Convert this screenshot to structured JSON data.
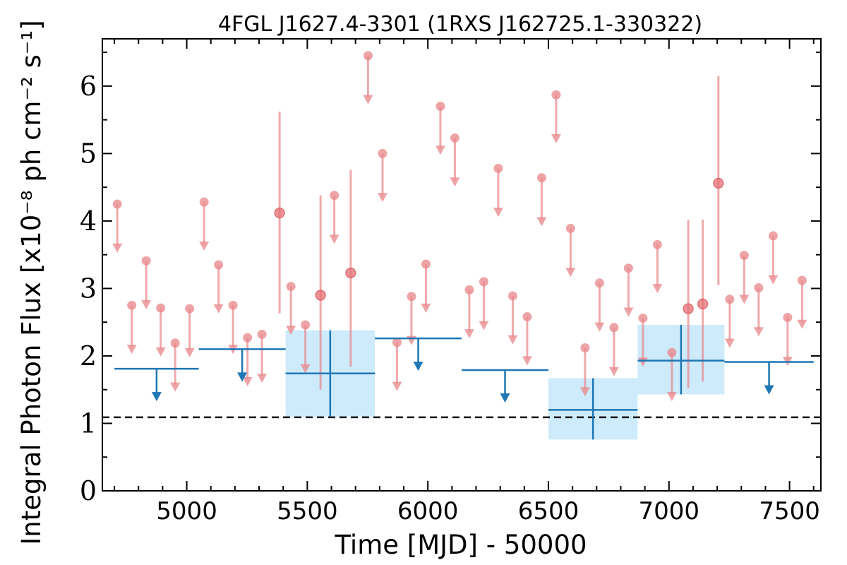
{
  "chart_data": {
    "type": "scatter",
    "title": "4FGL J1627.4-3301 (1RXS J162725.1-330322)",
    "xlabel": "Time [MJD] - 50000",
    "ylabel": "Integral Photon Flux [x10⁻⁸ ph cm⁻² s⁻¹]",
    "xlim": [
      4650,
      7630
    ],
    "ylim": [
      0,
      6.7
    ],
    "x_ticks": [
      5000,
      5500,
      6000,
      6500,
      7000,
      7500
    ],
    "y_ticks": [
      0,
      1,
      2,
      3,
      4,
      5,
      6
    ],
    "grid": false,
    "reference_line": {
      "y": 1.09,
      "style": "dashed",
      "color": "#000000"
    },
    "colors": {
      "short_bins": "#e8868a",
      "long_bins": "#1f77b4",
      "long_band": "#cdebfb"
    },
    "series": [
      {
        "kind": "short_upper_limits",
        "points": [
          [
            4712,
            4.25
          ],
          [
            4772,
            2.75
          ],
          [
            4832,
            3.41
          ],
          [
            4892,
            2.71
          ],
          [
            4952,
            2.19
          ],
          [
            5012,
            2.7
          ],
          [
            5072,
            4.28
          ],
          [
            5132,
            3.35
          ],
          [
            5192,
            2.75
          ],
          [
            5252,
            2.27
          ],
          [
            5312,
            2.32
          ],
          [
            5432,
            3.03
          ],
          [
            5492,
            2.46
          ],
          [
            5612,
            4.38
          ],
          [
            5752,
            6.45
          ],
          [
            5812,
            5.0
          ],
          [
            5872,
            2.2
          ],
          [
            5932,
            2.88
          ],
          [
            5992,
            3.36
          ],
          [
            6052,
            5.7
          ],
          [
            6112,
            5.23
          ],
          [
            6172,
            2.98
          ],
          [
            6232,
            3.1
          ],
          [
            6292,
            4.78
          ],
          [
            6352,
            2.89
          ],
          [
            6412,
            2.58
          ],
          [
            6472,
            4.64
          ],
          [
            6532,
            5.87
          ],
          [
            6592,
            3.89
          ],
          [
            6652,
            2.12
          ],
          [
            6712,
            3.08
          ],
          [
            6772,
            2.42
          ],
          [
            6832,
            3.3
          ],
          [
            6892,
            2.56
          ],
          [
            6952,
            3.65
          ],
          [
            7012,
            2.05
          ],
          [
            7252,
            2.84
          ],
          [
            7312,
            3.49
          ],
          [
            7372,
            3.01
          ],
          [
            7432,
            3.78
          ],
          [
            7492,
            2.57
          ],
          [
            7552,
            3.12
          ]
        ]
      },
      {
        "kind": "short_detections",
        "points": [
          [
            5385,
            4.12,
            2.63,
            5.62
          ],
          [
            5555,
            2.9,
            1.5,
            4.38
          ],
          [
            5680,
            3.23,
            1.84,
            4.76
          ],
          [
            7080,
            2.7,
            1.52,
            4.02
          ],
          [
            7140,
            2.77,
            1.62,
            4.02
          ],
          [
            7205,
            4.56,
            3.05,
            6.15
          ]
        ]
      },
      {
        "kind": "long_upper_limits",
        "bins": [
          [
            4700,
            5050,
            1.81
          ],
          [
            5050,
            5410,
            2.1
          ],
          [
            5780,
            6140,
            2.26
          ],
          [
            6140,
            6500,
            1.79
          ],
          [
            7230,
            7600,
            1.91
          ]
        ]
      },
      {
        "kind": "long_detections",
        "bins": [
          [
            5410,
            5780,
            1.74,
            1.1,
            2.38
          ],
          [
            6500,
            6870,
            1.2,
            0.76,
            1.67
          ],
          [
            6870,
            7230,
            1.93,
            1.43,
            2.46
          ]
        ]
      }
    ]
  }
}
